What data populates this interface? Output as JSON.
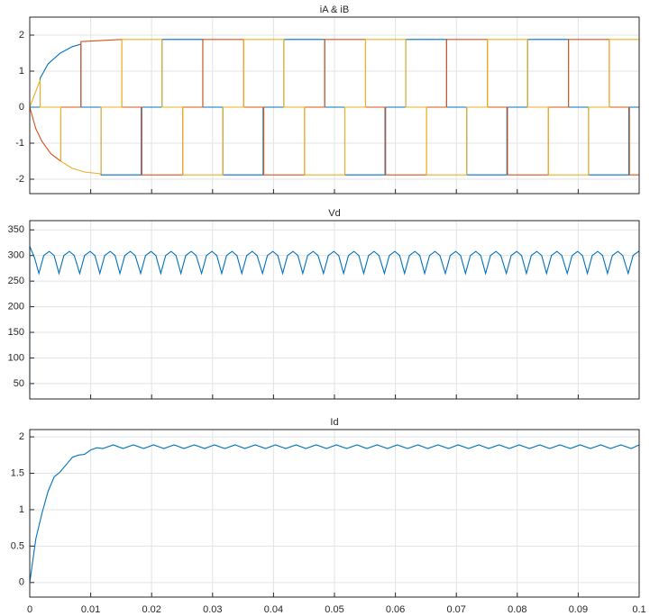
{
  "chart_data": [
    {
      "type": "line",
      "title": "iA & iB",
      "xlim": [
        0,
        0.1
      ],
      "ylim": [
        -2.4,
        2.5
      ],
      "yticks": [
        -2,
        -1,
        0,
        1,
        2
      ],
      "grid": true,
      "series": [
        {
          "color": "#0072BD",
          "x": [
            0,
            0.0017,
            0.0017,
            0.003,
            0.005,
            0.007,
            0.0084,
            0.0084,
            0.0117,
            0.0117,
            0.0183,
            0.0183,
            0.0217,
            0.0217,
            0.0284,
            0.0284,
            0.0317,
            0.0317,
            0.0383,
            0.0383,
            0.0417,
            0.0417,
            0.0484,
            0.0484,
            0.0517,
            0.0517,
            0.0583,
            0.0583,
            0.0617,
            0.0617,
            0.0684,
            0.0684,
            0.0717,
            0.0717,
            0.0783,
            0.0783,
            0.0817,
            0.0817,
            0.0884,
            0.0884,
            0.0917,
            0.0917,
            0.0983,
            0.0983,
            0.1
          ],
          "values": [
            0,
            0,
            0.8,
            1.2,
            1.5,
            1.68,
            1.75,
            0,
            0,
            -1.88,
            -1.88,
            0,
            0,
            1.88,
            1.88,
            0,
            0,
            -1.88,
            -1.88,
            0,
            0,
            1.88,
            1.88,
            0,
            0,
            -1.88,
            -1.88,
            0,
            0,
            1.88,
            1.88,
            0,
            0,
            -1.88,
            -1.88,
            0,
            0,
            1.88,
            1.88,
            0,
            0,
            -1.88,
            -1.88,
            0,
            0
          ]
        },
        {
          "color": "#D95319",
          "x": [
            0,
            0.001,
            0.002,
            0.0035,
            0.0051,
            0.0051,
            0.0084,
            0.0084,
            0.0151,
            0.0151,
            0.0184,
            0.0184,
            0.0251,
            0.0251,
            0.0284,
            0.0284,
            0.0351,
            0.0351,
            0.0384,
            0.0384,
            0.0451,
            0.0451,
            0.0484,
            0.0484,
            0.0551,
            0.0551,
            0.0584,
            0.0584,
            0.0651,
            0.0651,
            0.0684,
            0.0684,
            0.0751,
            0.0751,
            0.0784,
            0.0784,
            0.0851,
            0.0851,
            0.0884,
            0.0884,
            0.0951,
            0.0951,
            0.0984,
            0.0984,
            0.1
          ],
          "values": [
            0,
            -0.6,
            -0.95,
            -1.3,
            -1.5,
            0,
            0,
            1.82,
            1.88,
            0,
            0,
            -1.88,
            -1.88,
            0,
            0,
            1.88,
            1.88,
            0,
            0,
            -1.88,
            -1.88,
            0,
            0,
            1.88,
            1.88,
            0,
            0,
            -1.88,
            -1.88,
            0,
            0,
            1.88,
            1.88,
            0,
            0,
            -1.88,
            -1.88,
            0,
            0,
            1.88,
            1.88,
            0,
            0,
            -1.88,
            -1.88
          ]
        },
        {
          "color": "#EDB120",
          "x": [
            0,
            0.0017,
            0.0017,
            0.0051,
            0.0051,
            0.007,
            0.009,
            0.0117,
            0.0117,
            0.0151,
            0.0151,
            0.0217,
            0.0217,
            0.0251,
            0.0251,
            0.0317,
            0.0317,
            0.0351,
            0.0351,
            0.0417,
            0.0417,
            0.0451,
            0.0451,
            0.0517,
            0.0517,
            0.0551,
            0.0551,
            0.0617,
            0.0617,
            0.0651,
            0.0651,
            0.0717,
            0.0717,
            0.0751,
            0.0751,
            0.0817,
            0.0817,
            0.0851,
            0.0851,
            0.0917,
            0.0917,
            0.0951,
            0.0951,
            0.1
          ],
          "values": [
            0,
            0.75,
            0,
            0,
            -1.5,
            -1.7,
            -1.8,
            -1.85,
            0,
            0,
            1.88,
            1.88,
            0,
            0,
            -1.88,
            -1.88,
            0,
            0,
            1.88,
            1.88,
            0,
            0,
            -1.88,
            -1.88,
            0,
            0,
            1.88,
            1.88,
            0,
            0,
            -1.88,
            -1.88,
            0,
            0,
            1.88,
            1.88,
            0,
            0,
            -1.88,
            -1.88,
            0,
            0,
            1.88,
            1.88
          ]
        }
      ]
    },
    {
      "type": "line",
      "title": "Vd",
      "xlim": [
        0,
        0.1
      ],
      "ylim": [
        20,
        368
      ],
      "yticks": [
        50,
        100,
        150,
        200,
        250,
        300,
        350
      ],
      "grid": true,
      "series": [
        {
          "color": "#0072BD",
          "x": [
            0,
            0,
            0.0008,
            0.0015,
            0.0023,
            0.0032,
            0.004,
            0.0048,
            0.0056,
            0.0065,
            0.0073,
            0.0082,
            0.009,
            0.0099,
            0.0107,
            0.0115,
            0.0123,
            0.0132,
            0.014,
            0.0148,
            0.0156,
            0.0165,
            0.0173,
            0.0182,
            0.019,
            0.0199,
            0.0207,
            0.0215,
            0.0223,
            0.0232,
            0.024,
            0.0248,
            0.0256,
            0.0265,
            0.0273,
            0.0282,
            0.029,
            0.0299,
            0.0307,
            0.0315,
            0.0323,
            0.0332,
            0.034,
            0.0348,
            0.0356,
            0.0365,
            0.0373,
            0.0382,
            0.039,
            0.0399,
            0.0407,
            0.0415,
            0.0423,
            0.0432,
            0.044,
            0.0448,
            0.0456,
            0.0465,
            0.0473,
            0.0482,
            0.049,
            0.0499,
            0.0507,
            0.0515,
            0.0523,
            0.0532,
            0.054,
            0.0548,
            0.0556,
            0.0565,
            0.0573,
            0.0582,
            0.059,
            0.0599,
            0.0607,
            0.0615,
            0.0623,
            0.0632,
            0.064,
            0.0648,
            0.0656,
            0.0665,
            0.0673,
            0.0682,
            0.069,
            0.0699,
            0.0707,
            0.0715,
            0.0723,
            0.0732,
            0.074,
            0.0748,
            0.0756,
            0.0765,
            0.0773,
            0.0782,
            0.079,
            0.0799,
            0.0807,
            0.0815,
            0.0823,
            0.0832,
            0.084,
            0.0848,
            0.0856,
            0.0865,
            0.0873,
            0.0882,
            0.089,
            0.0899,
            0.0907,
            0.0915,
            0.0923,
            0.0932,
            0.094,
            0.0948,
            0.0956,
            0.0965,
            0.0973,
            0.0982,
            0.099,
            0.0999,
            0.1
          ],
          "values": [
            30,
            318,
            295,
            265,
            300,
            308,
            300,
            265,
            300,
            308,
            300,
            265,
            300,
            308,
            300,
            265,
            300,
            308,
            300,
            265,
            300,
            308,
            300,
            265,
            300,
            308,
            300,
            265,
            300,
            308,
            300,
            265,
            300,
            308,
            300,
            265,
            300,
            308,
            300,
            265,
            300,
            308,
            300,
            265,
            300,
            308,
            300,
            265,
            300,
            308,
            300,
            265,
            300,
            308,
            300,
            265,
            300,
            308,
            300,
            265,
            300,
            308,
            300,
            265,
            300,
            308,
            300,
            265,
            300,
            308,
            300,
            265,
            300,
            308,
            300,
            265,
            300,
            308,
            300,
            265,
            300,
            308,
            300,
            265,
            300,
            308,
            300,
            265,
            300,
            308,
            300,
            265,
            300,
            308,
            300,
            265,
            300,
            308,
            300,
            265,
            300,
            308,
            300,
            265,
            300,
            308,
            300,
            265,
            300,
            308,
            300,
            265,
            300,
            308,
            300,
            265,
            300,
            308,
            300,
            265,
            300,
            308,
            306
          ]
        }
      ]
    },
    {
      "type": "line",
      "title": "Id",
      "xlim": [
        0,
        0.1
      ],
      "ylim": [
        -0.2,
        2.1
      ],
      "yticks": [
        0,
        0.5,
        1,
        1.5,
        2
      ],
      "xticks": [
        0,
        0.01,
        0.02,
        0.03,
        0.04,
        0.05,
        0.06,
        0.07,
        0.08,
        0.09,
        0.1
      ],
      "grid": true,
      "series": [
        {
          "color": "#0072BD",
          "x": [
            0,
            0.001,
            0.002,
            0.003,
            0.004,
            0.005,
            0.006,
            0.007,
            0.008,
            0.009,
            0.01,
            0.011,
            0.012,
            0.0137,
            0.0153,
            0.017,
            0.0187,
            0.0203,
            0.022,
            0.0237,
            0.0253,
            0.027,
            0.0287,
            0.0303,
            0.032,
            0.0337,
            0.0353,
            0.037,
            0.0387,
            0.0403,
            0.042,
            0.0437,
            0.0453,
            0.047,
            0.0487,
            0.0503,
            0.052,
            0.0537,
            0.0553,
            0.057,
            0.0587,
            0.0603,
            0.062,
            0.0637,
            0.0653,
            0.067,
            0.0687,
            0.0703,
            0.072,
            0.0737,
            0.0753,
            0.077,
            0.0787,
            0.0803,
            0.082,
            0.0837,
            0.0853,
            0.087,
            0.0887,
            0.0903,
            0.092,
            0.0937,
            0.0953,
            0.097,
            0.0987,
            0.1
          ],
          "values": [
            0,
            0.6,
            0.95,
            1.25,
            1.45,
            1.52,
            1.62,
            1.72,
            1.75,
            1.76,
            1.82,
            1.85,
            1.84,
            1.89,
            1.84,
            1.89,
            1.84,
            1.89,
            1.84,
            1.89,
            1.84,
            1.89,
            1.84,
            1.89,
            1.84,
            1.89,
            1.84,
            1.89,
            1.84,
            1.89,
            1.84,
            1.89,
            1.84,
            1.89,
            1.84,
            1.89,
            1.84,
            1.89,
            1.84,
            1.89,
            1.84,
            1.89,
            1.84,
            1.89,
            1.84,
            1.89,
            1.84,
            1.89,
            1.84,
            1.89,
            1.84,
            1.89,
            1.84,
            1.89,
            1.84,
            1.89,
            1.84,
            1.89,
            1.84,
            1.89,
            1.84,
            1.89,
            1.84,
            1.89,
            1.84,
            1.89
          ]
        }
      ]
    }
  ]
}
